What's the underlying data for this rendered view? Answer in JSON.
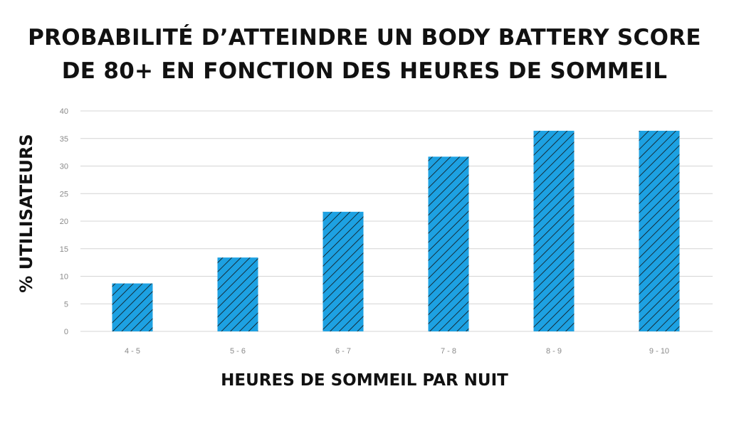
{
  "chart_data": {
    "type": "bar",
    "title_lines": [
      "PROBABILITÉ D’ATTEINDRE UN BODY BATTERY SCORE",
      "DE 80+ EN FONCTION DES HEURES DE SOMMEIL"
    ],
    "xlabel": "HEURES DE SOMMEIL PAR NUIT",
    "ylabel": "% UTILISATEURS",
    "categories": [
      "4 - 5",
      "5 - 6",
      "6 - 7",
      "7 - 8",
      "8 - 9",
      "9 - 10"
    ],
    "values": [
      8.7,
      13.4,
      21.7,
      31.7,
      36.4,
      36.4
    ],
    "ylim": [
      0,
      40
    ],
    "yticks": [
      "0",
      "5",
      "10",
      "15",
      "20",
      "25",
      "30",
      "35",
      "40"
    ],
    "grid": true,
    "bar_color": "#1da1e2",
    "hatch_color": "#111111"
  }
}
